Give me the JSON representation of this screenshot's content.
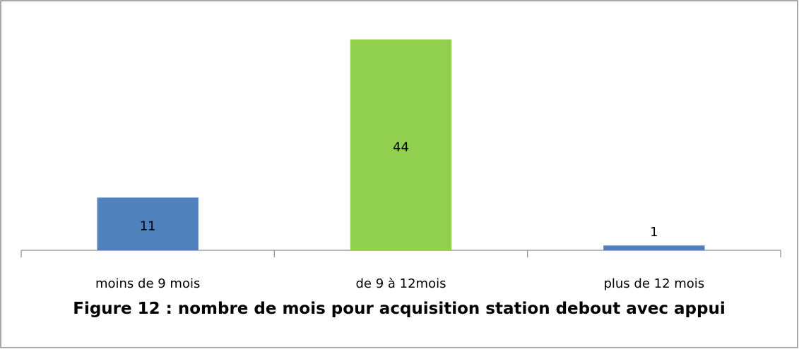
{
  "chart_data": {
    "type": "bar",
    "title": "Figure 12 : nombre de mois pour acquisition station debout avec appui",
    "categories": [
      "moins de 9 mois",
      "de 9 à 12mois",
      "plus de 12 mois"
    ],
    "values": [
      11,
      44,
      1
    ],
    "colors": [
      "#4f81bd",
      "#92d050",
      "#4f81bd"
    ]
  }
}
